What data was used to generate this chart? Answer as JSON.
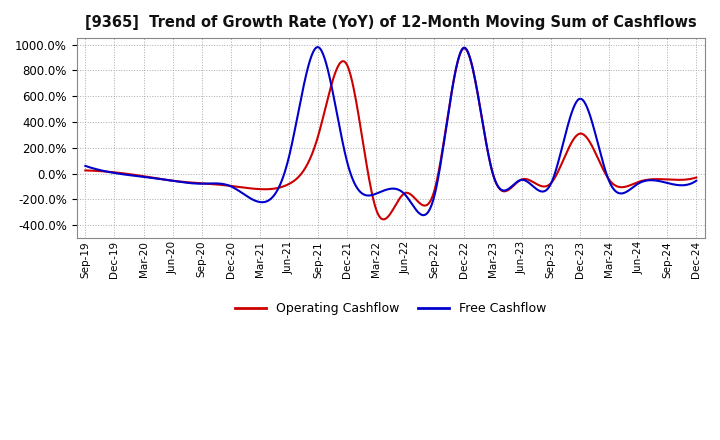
{
  "title": "[9365]  Trend of Growth Rate (YoY) of 12-Month Moving Sum of Cashflows",
  "ylim": [
    -500,
    1050
  ],
  "yticks": [
    -400,
    -200,
    0,
    200,
    400,
    600,
    800,
    1000
  ],
  "background_color": "#ffffff",
  "grid_color": "#aaaaaa",
  "operating_color": "#cc0000",
  "free_color": "#0000cc",
  "legend_labels": [
    "Operating Cashflow",
    "Free Cashflow"
  ],
  "x_labels": [
    "Sep-19",
    "Dec-19",
    "Mar-20",
    "Jun-20",
    "Sep-20",
    "Dec-20",
    "Mar-21",
    "Jun-21",
    "Sep-21",
    "Dec-21",
    "Mar-22",
    "Jun-22",
    "Sep-22",
    "Dec-22",
    "Mar-23",
    "Jun-23",
    "Sep-23",
    "Dec-23",
    "Mar-24",
    "Jun-24",
    "Sep-24",
    "Dec-24"
  ],
  "operating": [
    25,
    10,
    -20,
    -55,
    -75,
    -95,
    -120,
    -80,
    290,
    840,
    -280,
    -150,
    -130,
    970,
    5,
    -45,
    -75,
    310,
    -45,
    -65,
    -45,
    -30
  ],
  "free": [
    60,
    5,
    -25,
    -55,
    -78,
    -98,
    -220,
    130,
    980,
    90,
    -155,
    -165,
    -170,
    975,
    5,
    -48,
    -80,
    580,
    -55,
    -78,
    -72,
    -55
  ]
}
